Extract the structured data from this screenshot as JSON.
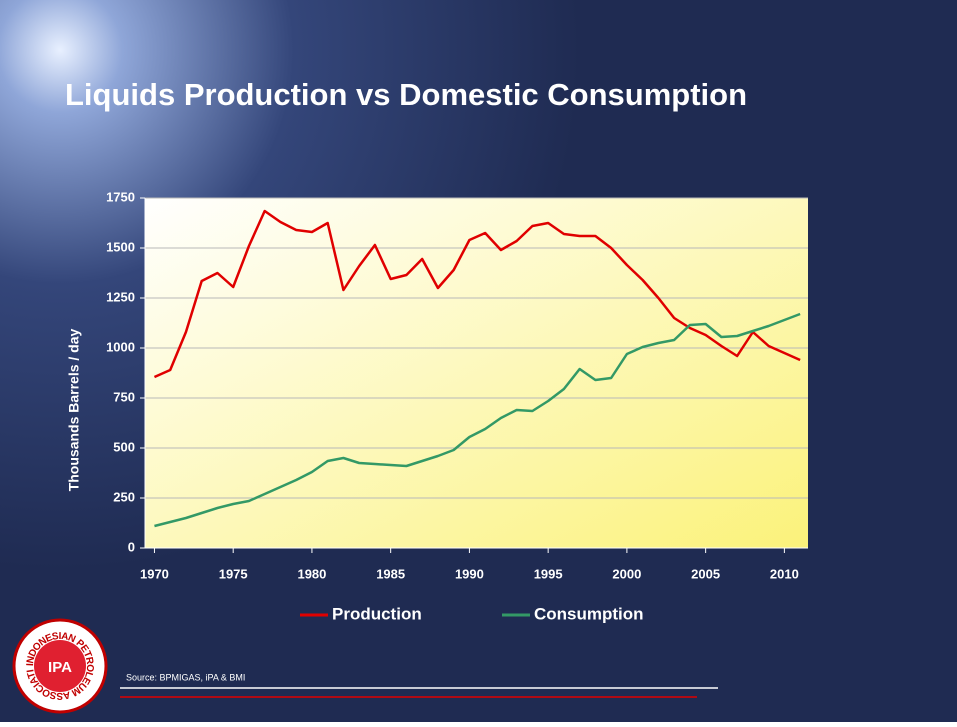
{
  "chart_data": {
    "type": "line",
    "title": "Liquids Production vs Domestic Consumption",
    "ylabel": "Thousands Barrels / day",
    "source": "Source: BPMIGAS, iPA  & BMI",
    "x": [
      1970,
      1971,
      1972,
      1973,
      1974,
      1975,
      1976,
      1977,
      1978,
      1979,
      1980,
      1981,
      1982,
      1983,
      1984,
      1985,
      1986,
      1987,
      1988,
      1989,
      1990,
      1991,
      1992,
      1993,
      1994,
      1995,
      1996,
      1997,
      1998,
      1999,
      2000,
      2001,
      2002,
      2003,
      2004,
      2005,
      2006,
      2007,
      2008,
      2009,
      2010,
      2011
    ],
    "series": [
      {
        "name": "Production",
        "color": "#e00000",
        "values": [
          855,
          890,
          1080,
          1335,
          1375,
          1305,
          1510,
          1685,
          1630,
          1590,
          1580,
          1625,
          1290,
          1410,
          1515,
          1345,
          1365,
          1445,
          1300,
          1390,
          1540,
          1575,
          1490,
          1535,
          1610,
          1625,
          1570,
          1560,
          1560,
          1500,
          1415,
          1340,
          1250,
          1150,
          1100,
          1065,
          1010,
          960,
          1080,
          1010,
          975,
          940
        ]
      },
      {
        "name": "Consumption",
        "color": "#339966",
        "values": [
          110,
          130,
          150,
          175,
          200,
          220,
          235,
          270,
          305,
          340,
          380,
          435,
          450,
          425,
          420,
          415,
          410,
          435,
          460,
          490,
          555,
          595,
          650,
          690,
          685,
          735,
          795,
          895,
          840,
          850,
          970,
          1005,
          1025,
          1040,
          1115,
          1120,
          1055,
          1060,
          1085,
          1110,
          1140,
          1170
        ]
      }
    ],
    "xlim": [
      1969.4,
      2011.5
    ],
    "xticks": [
      1970,
      1975,
      1980,
      1985,
      1990,
      1995,
      2000,
      2005,
      2010
    ],
    "ylim": [
      0,
      1750
    ],
    "yticks": [
      0,
      250,
      500,
      750,
      1000,
      1250,
      1500,
      1750
    ],
    "grid": true,
    "legend": "bottom"
  },
  "logo": {
    "text": "IPA",
    "ring": "INDONESIAN PETROLEUM ASSOCIATION"
  }
}
